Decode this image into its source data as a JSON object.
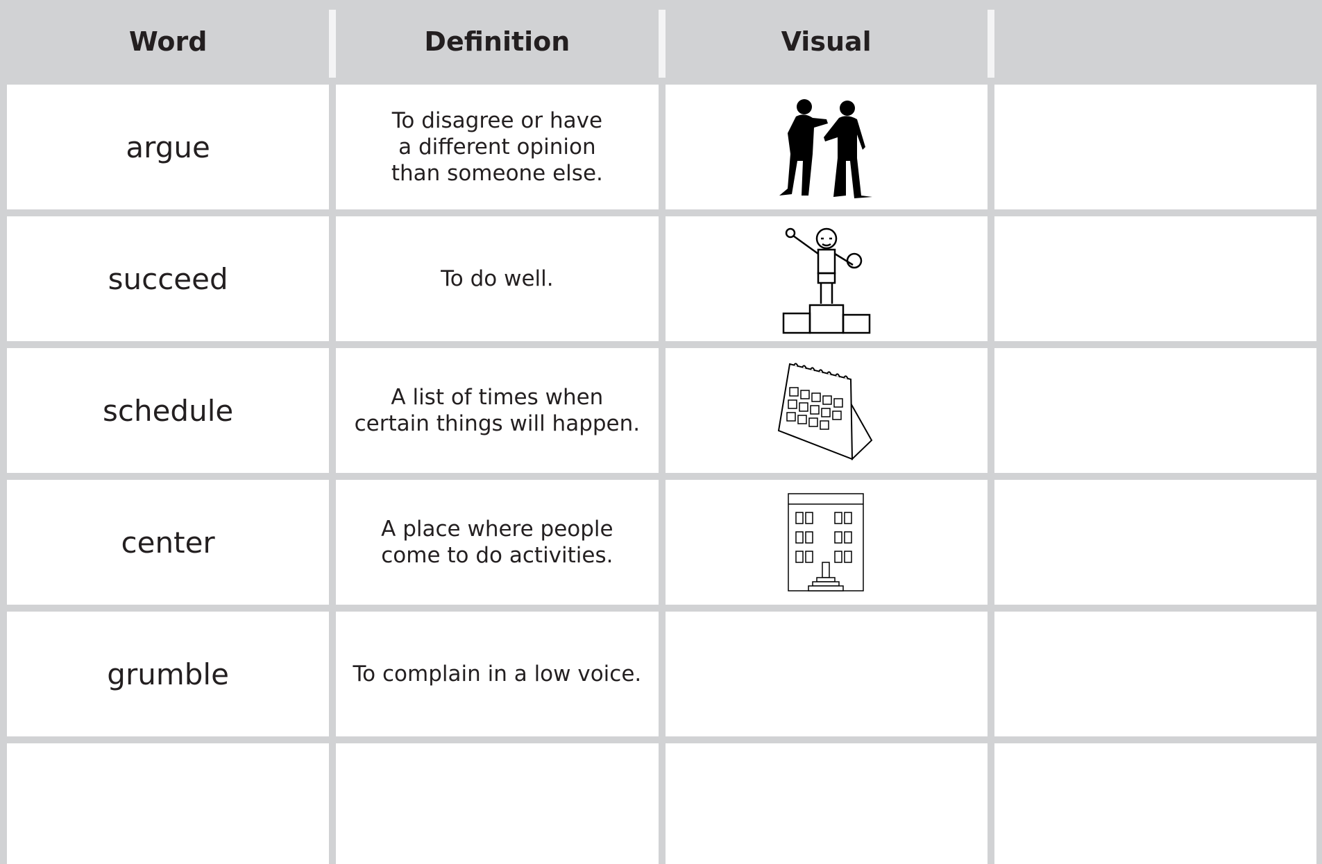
{
  "header": {
    "columns": [
      "Word",
      "Definition",
      "Visual"
    ]
  },
  "table": {
    "rows": [
      {
        "word": "argue",
        "definition": [
          "To disagree or have",
          "a different opinion",
          "than someone else."
        ]
      },
      {
        "word": "succeed",
        "definition": [
          "To do well."
        ]
      },
      {
        "word": "schedule",
        "definition": [
          "A list of times when",
          "certain things will happen."
        ]
      },
      {
        "word": "center",
        "definition": [
          "A place where people",
          "come to do activities."
        ]
      },
      {
        "word": "grumble",
        "definition": [
          "To complain in a low voice."
        ]
      }
    ]
  }
}
